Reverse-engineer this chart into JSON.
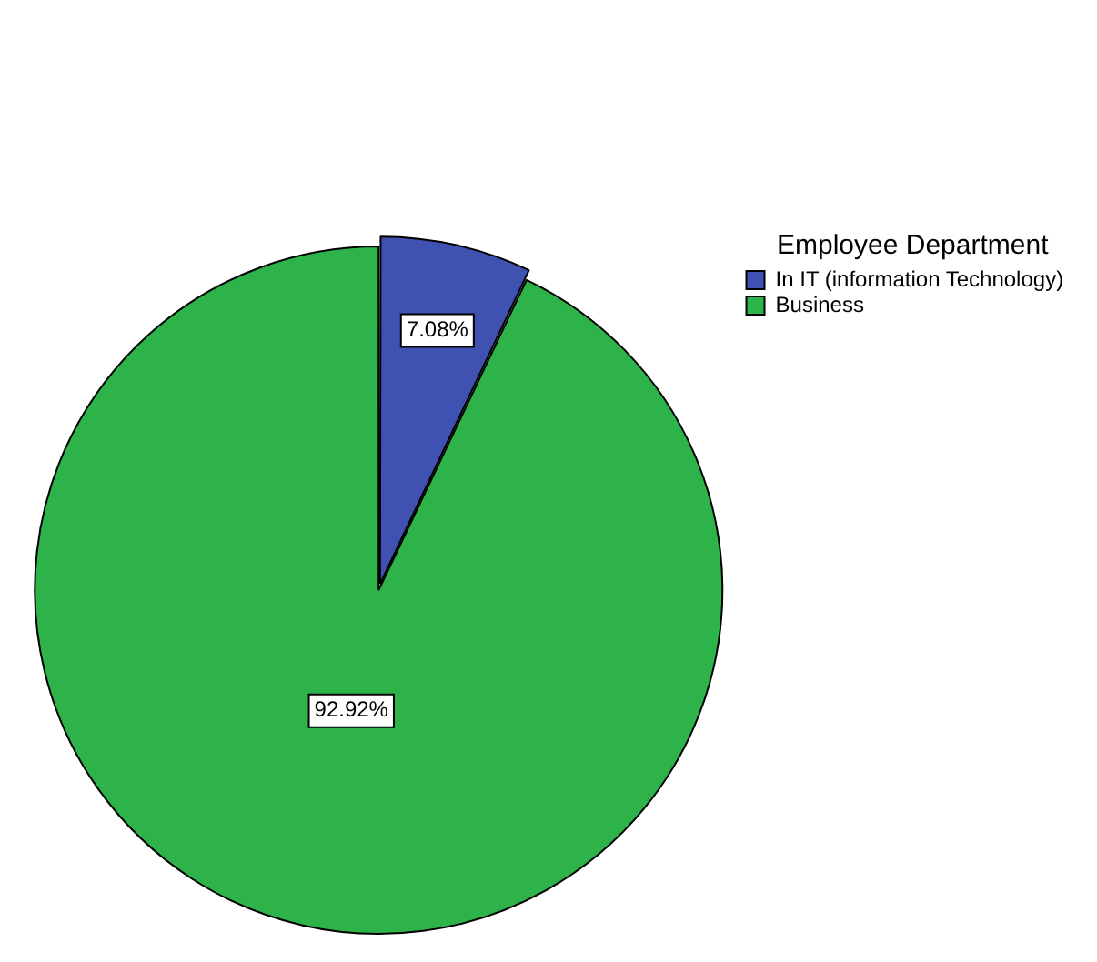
{
  "chart_data": {
    "type": "pie",
    "legend_title": "Employee Department",
    "legend": "top right",
    "categories": [
      "In IT (information Technology)",
      "Business"
    ],
    "values": [
      7.08,
      92.92
    ],
    "colors": [
      "#3f51b1",
      "#2db34a"
    ],
    "value_labels": [
      "7.08%",
      "92.92%"
    ]
  }
}
